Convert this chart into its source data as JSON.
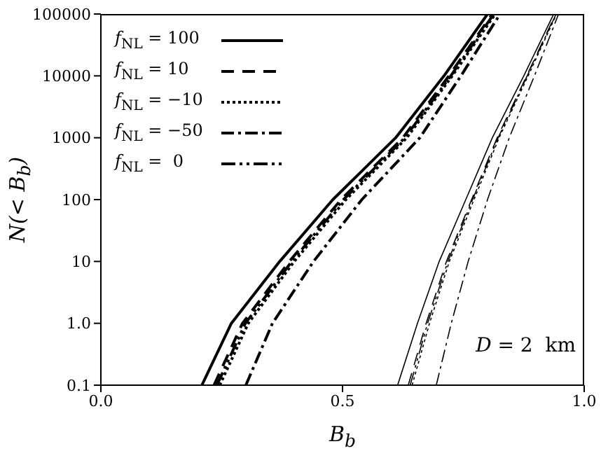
{
  "chart_data": {
    "type": "line",
    "xlabel": "B$_{b}$",
    "ylabel": "N(< B$_{b}$)",
    "log": "y",
    "xlim": [
      0,
      1
    ],
    "xticks": [
      {
        "value": 0,
        "label": "0.0"
      },
      0.5,
      {
        "value": 1,
        "label": "1.0"
      }
    ],
    "ylim": [
      0.1,
      100000
    ],
    "yticks": [
      0.1,
      {
        "value": 1,
        "label": "1.0"
      },
      10,
      100,
      1000,
      10000,
      100000
    ],
    "legend": "top left",
    "grid": false,
    "marker": "none",
    "annotations": [
      "D = 2  km"
    ],
    "series": [
      {
        "name": "f$_{NL}$ = 100",
        "color": "#000000",
        "line_style": "solid",
        "x": [
          0.209,
          0.27,
          0.37,
          0.48,
          0.61,
          0.71,
          0.8
        ],
        "values": [
          0.1,
          1,
          10,
          100,
          1000,
          10000,
          100000
        ]
      },
      {
        "name": "f$_{NL}$ = 10",
        "color": "#000000",
        "line_style": "dashed",
        "x": [
          0.234,
          0.293,
          0.39,
          0.497,
          0.625,
          0.72,
          0.81
        ],
        "values": [
          0.1,
          1,
          10,
          100,
          1000,
          10000,
          100000
        ]
      },
      {
        "name": "f$_{NL}$ = −10",
        "color": "#000000",
        "line_style": "dotted",
        "x": [
          0.246,
          0.305,
          0.4,
          0.507,
          0.633,
          0.727,
          0.816
        ],
        "values": [
          0.1,
          1,
          10,
          100,
          1000,
          10000,
          100000
        ]
      },
      {
        "name": "f$_{NL}$ = −50",
        "color": "#000000",
        "line_style": "dashdot",
        "x": [
          0.3,
          0.355,
          0.44,
          0.54,
          0.66,
          0.745,
          0.826
        ],
        "values": [
          0.1,
          1,
          10,
          100,
          1000,
          10000,
          100000
        ]
      },
      {
        "name": "f$_{NL}$ =  0",
        "color": "#000000",
        "line_style": "dashdotdot",
        "x": [
          0.24,
          0.299,
          0.395,
          0.502,
          0.629,
          0.724,
          0.813
        ],
        "values": [
          0.1,
          1,
          10,
          100,
          1000,
          10000,
          100000
        ]
      },
      {
        "color": "#000000",
        "line_style": "solid",
        "x": [
          0.614,
          0.655,
          0.7,
          0.755,
          0.81,
          0.875,
          0.937
        ],
        "values": [
          0.1,
          1,
          10,
          100,
          1000,
          10000,
          100000
        ]
      },
      {
        "color": "#000000",
        "line_style": "dashed",
        "x": [
          0.636,
          0.673,
          0.715,
          0.767,
          0.82,
          0.881,
          0.941
        ],
        "values": [
          0.1,
          1,
          10,
          100,
          1000,
          10000,
          100000
        ]
      },
      {
        "color": "#000000",
        "line_style": "dotted",
        "x": [
          0.644,
          0.68,
          0.721,
          0.772,
          0.824,
          0.884,
          0.943
        ],
        "values": [
          0.1,
          1,
          10,
          100,
          1000,
          10000,
          100000
        ]
      },
      {
        "color": "#000000",
        "line_style": "dashdot",
        "x": [
          0.694,
          0.725,
          0.76,
          0.8,
          0.845,
          0.897,
          0.947
        ],
        "values": [
          0.1,
          1,
          10,
          100,
          1000,
          10000,
          100000
        ]
      },
      {
        "color": "#000000",
        "line_style": "dashdotdot",
        "x": [
          0.64,
          0.676,
          0.718,
          0.769,
          0.822,
          0.882,
          0.942
        ],
        "values": [
          0.1,
          1,
          10,
          100,
          1000,
          10000,
          100000
        ]
      }
    ]
  }
}
